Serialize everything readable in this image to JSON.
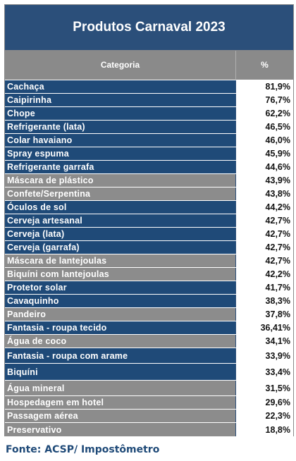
{
  "title": "Produtos Carnaval 2023",
  "header": {
    "category": "Categoria",
    "percent": "%"
  },
  "rows": [
    {
      "category": "Cachaça",
      "percent": "81,9%"
    },
    {
      "category": "Caipirinha",
      "percent": "76,7%"
    },
    {
      "category": "Chope",
      "percent": "62,2%"
    },
    {
      "category": "Refrigerante (lata)",
      "percent": "46,5%"
    },
    {
      "category": "Colar havaiano",
      "percent": "46,0%"
    },
    {
      "category": "Spray espuma",
      "percent": "45,9%"
    },
    {
      "category": "Refrigerante garrafa",
      "percent": "44,6%"
    },
    {
      "category": "Máscara de plástico",
      "percent": "43,9%"
    },
    {
      "category": "Confete/Serpentina",
      "percent": "43,8%"
    },
    {
      "category": "Óculos de sol",
      "percent": "44,2%"
    },
    {
      "category": "Cerveja artesanal",
      "percent": "42,7%"
    },
    {
      "category": "Cerveja (lata)",
      "percent": "42,7%"
    },
    {
      "category": "Cerveja (garrafa)",
      "percent": "42,7%"
    },
    {
      "category": "Máscara de lantejoulas",
      "percent": "42,7%"
    },
    {
      "category": "Biquíni com lantejoulas",
      "percent": "42,2%"
    },
    {
      "category": "Protetor solar",
      "percent": "41,7%"
    },
    {
      "category": "Cavaquinho",
      "percent": "38,3%"
    },
    {
      "category": "Pandeiro",
      "percent": "37,8%"
    },
    {
      "category": "Fantasia - roupa tecido",
      "percent": "36,41%"
    },
    {
      "category": "Água de coco",
      "percent": "34,1%"
    },
    {
      "category": "Fantasia - roupa com arame",
      "percent": "33,9%"
    },
    {
      "category": "Biquíni",
      "percent": "33,4%"
    },
    {
      "category": "Água mineral",
      "percent": "31,5%"
    },
    {
      "category": "Hospedagem em hotel",
      "percent": "29,6%"
    },
    {
      "category": "Passagem aérea",
      "percent": "22,3%"
    },
    {
      "category": "Preservativo",
      "percent": "18,8%"
    }
  ],
  "source": "Fonte: ACSP/ Impostômetro",
  "colors": {
    "dark_blue": "#1f4a78",
    "title_blue": "#2b4f7a",
    "gray": "#8c8c8c"
  }
}
